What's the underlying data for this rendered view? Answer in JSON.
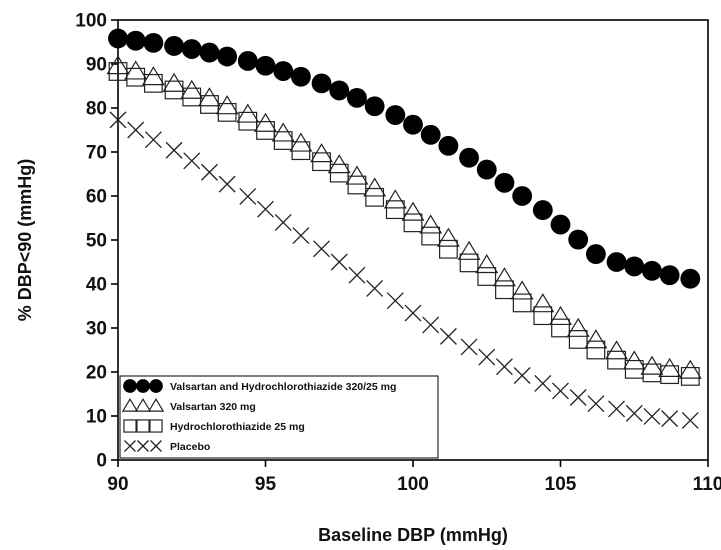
{
  "chart_data": {
    "type": "scatter",
    "xlabel": "Baseline DBP (mmHg)",
    "ylabel": "% DBP<90 (mmHg)",
    "xlim": [
      90,
      110
    ],
    "ylim": [
      0,
      100
    ],
    "xticks": [
      90,
      95,
      100,
      105,
      110
    ],
    "yticks": [
      0,
      10,
      20,
      30,
      40,
      50,
      60,
      70,
      80,
      90,
      100
    ],
    "grid": false,
    "legend_position": "bottom-left",
    "x": [
      90.0,
      90.6,
      91.2,
      91.9,
      92.5,
      93.1,
      93.7,
      94.4,
      95.0,
      95.6,
      96.2,
      96.9,
      97.5,
      98.1,
      98.7,
      99.4,
      100.0,
      100.6,
      101.2,
      101.9,
      102.5,
      103.1,
      103.7,
      104.4,
      105.0,
      105.6,
      106.2,
      106.9,
      107.5,
      108.1,
      108.7,
      109.4
    ],
    "series": [
      {
        "name": "Valsartan and Hydrochlorothiazide 320/25 mg",
        "marker": "filled-circle",
        "color": "#000000",
        "values": [
          95.8,
          95.3,
          94.8,
          94.1,
          93.4,
          92.6,
          91.7,
          90.7,
          89.6,
          88.4,
          87.1,
          85.6,
          84.0,
          82.3,
          80.4,
          78.4,
          76.2,
          73.9,
          71.4,
          68.7,
          66.0,
          63.0,
          60.0,
          56.8,
          53.5,
          50.1,
          46.8,
          45.0,
          44.0,
          43.0,
          42.0,
          41.2
        ]
      },
      {
        "name": "Valsartan 320 mg",
        "marker": "open-triangle",
        "color": "#000000",
        "values": [
          89.5,
          88.3,
          87.0,
          85.5,
          83.9,
          82.2,
          80.4,
          78.5,
          76.4,
          74.2,
          71.9,
          69.5,
          67.0,
          64.4,
          61.7,
          59.0,
          56.2,
          53.3,
          50.3,
          47.3,
          44.3,
          41.3,
          38.3,
          35.4,
          32.5,
          29.8,
          27.2,
          24.7,
          22.4,
          21.2,
          20.7,
          20.3
        ]
      },
      {
        "name": "Hydrochlorothiazide 25 mg",
        "marker": "open-square",
        "color": "#000000",
        "values": [
          88.3,
          87.0,
          85.6,
          84.1,
          82.5,
          80.8,
          79.0,
          77.0,
          74.9,
          72.6,
          70.3,
          67.8,
          65.2,
          62.5,
          59.7,
          56.9,
          53.9,
          50.9,
          47.9,
          44.8,
          41.7,
          38.7,
          35.7,
          32.8,
          30.0,
          27.4,
          25.0,
          22.7,
          20.6,
          19.8,
          19.4,
          19.0
        ]
      },
      {
        "name": "Placebo",
        "marker": "x",
        "color": "#000000",
        "values": [
          77.3,
          75.0,
          72.8,
          70.4,
          68.0,
          65.4,
          62.7,
          59.9,
          57.0,
          54.0,
          51.0,
          48.0,
          45.0,
          42.0,
          39.0,
          36.2,
          33.4,
          30.7,
          28.1,
          25.7,
          23.4,
          21.2,
          19.2,
          17.4,
          15.7,
          14.2,
          12.8,
          11.6,
          10.6,
          9.9,
          9.4,
          9.0
        ]
      }
    ]
  }
}
